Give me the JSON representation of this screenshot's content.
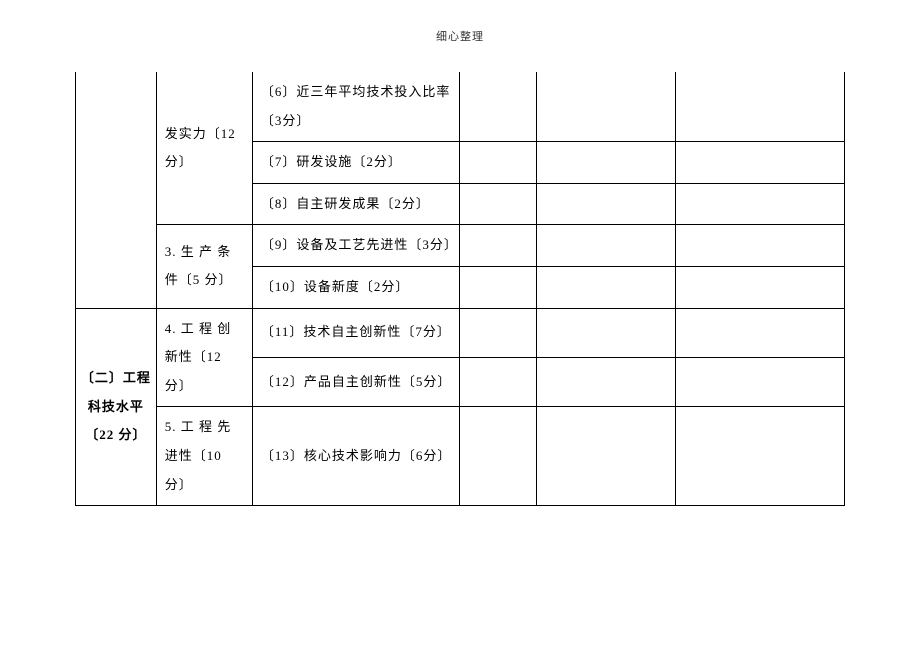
{
  "header": {
    "title": "细心整理"
  },
  "table": {
    "colors": {
      "border": "#000000",
      "text": "#000000",
      "background": "#ffffff"
    },
    "font": {
      "family": "SimSun",
      "size_pt": 13,
      "line_height": 2.2
    },
    "columns_width_pct": [
      10.5,
      12.5,
      27,
      10,
      18,
      22
    ],
    "rows": {
      "r1": {
        "sub": "发实力〔12分〕",
        "detail": "〔6〕近三年平均技术投入比率〔3分〕"
      },
      "r2": {
        "detail": "〔7〕研发设施〔2分〕"
      },
      "r3": {
        "detail": "〔8〕自主研发成果〔2分〕"
      },
      "r4": {
        "sub": "3. 生 产 条 件〔5 分〕",
        "detail": "〔9〕设备及工艺先进性〔3分〕"
      },
      "r5": {
        "detail": "〔10〕设备新度〔2分〕"
      },
      "r6": {
        "cat": "〔二〕工程科技水平〔22 分〕",
        "sub": "4. 工 程 创 新性〔12 分〕",
        "detail": "〔11〕技术自主创新性〔7分〕"
      },
      "r7": {
        "detail": "〔12〕产品自主创新性〔5分〕"
      },
      "r8": {
        "sub": "5. 工 程 先 进性〔10 分〕",
        "detail": "〔13〕核心技术影响力〔6分〕"
      }
    }
  }
}
